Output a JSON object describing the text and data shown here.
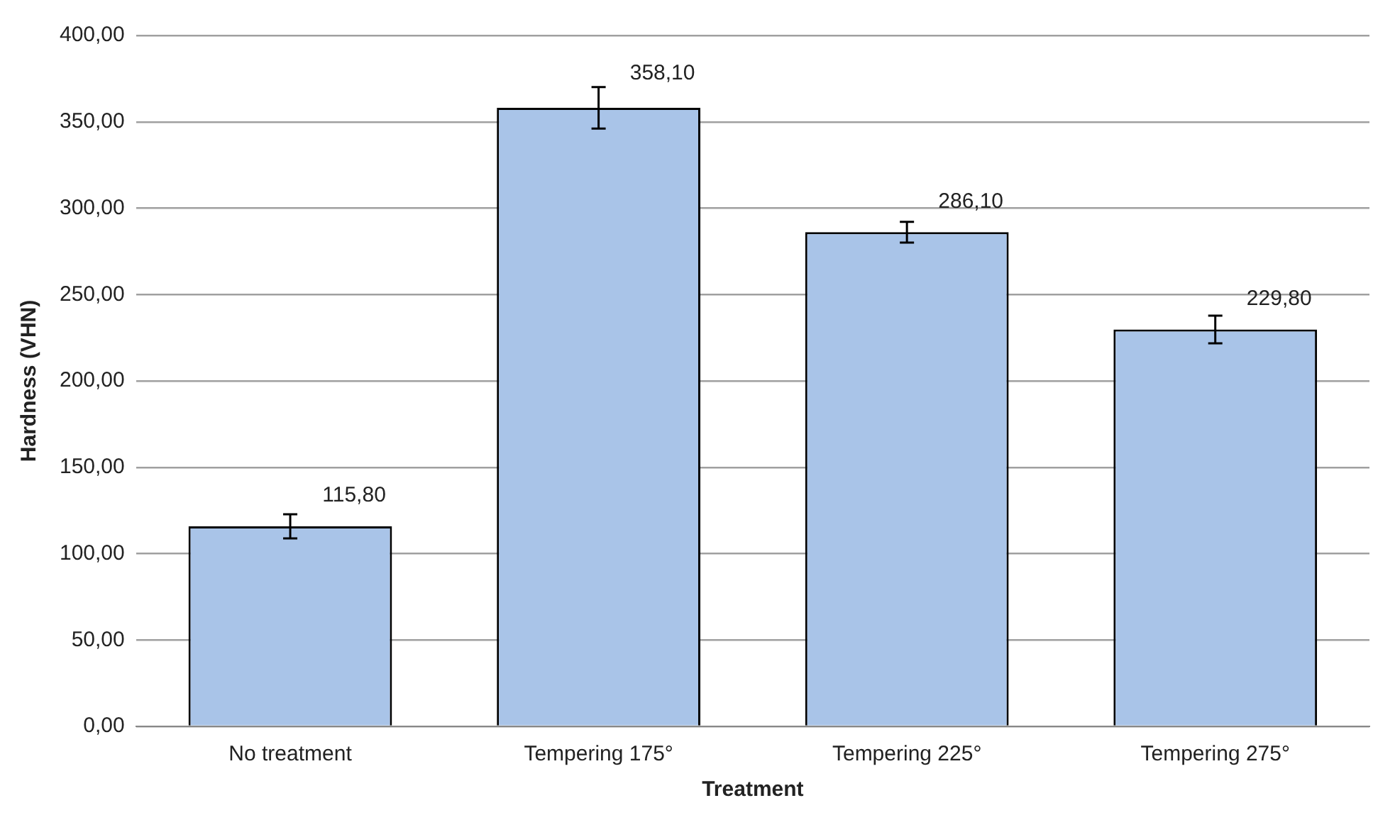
{
  "chart_data": {
    "type": "bar",
    "xlabel": "Treatment",
    "ylabel": "Hardness (VHN)",
    "categories": [
      "No treatment",
      "Tempering 175°",
      "Tempering 225°",
      "Tempering 275°"
    ],
    "values": [
      115.8,
      358.1,
      286.1,
      229.8
    ],
    "errors": [
      7,
      12,
      6,
      8
    ],
    "value_labels": [
      "115,80",
      "358,10",
      "286,10",
      "229,80"
    ],
    "color": "#a9c4e8",
    "ylim": [
      0,
      400
    ],
    "yticks": [
      {
        "value": 0,
        "label": "0,00"
      },
      {
        "value": 50,
        "label": "50,00"
      },
      {
        "value": 100,
        "label": "100,00"
      },
      {
        "value": 150,
        "label": "150,00"
      },
      {
        "value": 200,
        "label": "200,00"
      },
      {
        "value": 250,
        "label": "250,00"
      },
      {
        "value": 300,
        "label": "300,00"
      },
      {
        "value": 350,
        "label": "350,00"
      },
      {
        "value": 400,
        "label": "400,00"
      }
    ],
    "grid": "y",
    "legend": false
  }
}
